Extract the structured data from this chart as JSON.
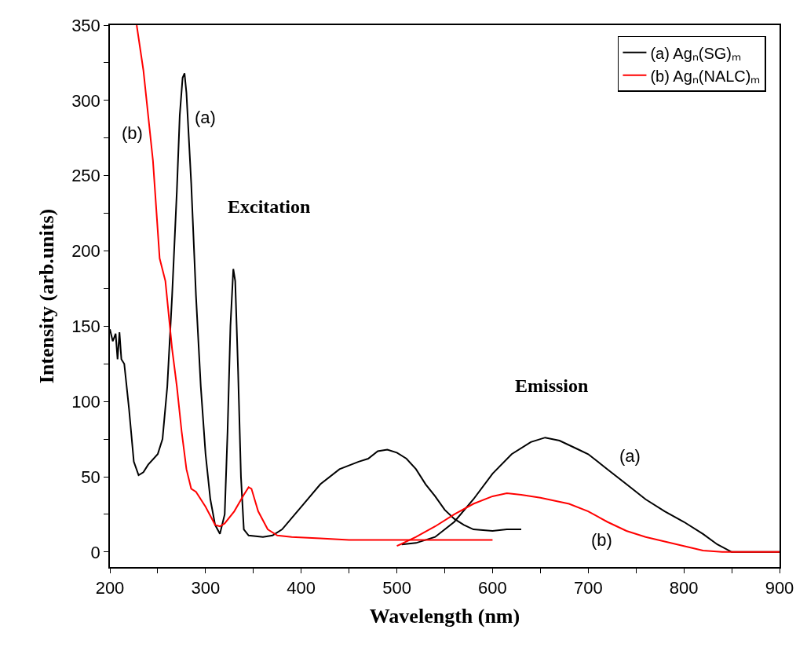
{
  "chart_data": {
    "type": "line",
    "xlabel": "Wavelength (nm)",
    "ylabel": "Intensity (arb.units)",
    "xlim": [
      200,
      900
    ],
    "xticks": [
      200,
      {
        "value": 250,
        "label": null
      },
      300,
      {
        "value": 350,
        "label": null
      },
      400,
      {
        "value": 450,
        "label": null
      },
      500,
      {
        "value": 550,
        "label": null
      },
      600,
      {
        "value": 650,
        "label": null
      },
      700,
      {
        "value": 750,
        "label": null
      },
      800,
      {
        "value": 850,
        "label": null
      },
      900
    ],
    "ylim": [
      -10,
      350
    ],
    "yticks": [
      0,
      {
        "value": 25,
        "label": null
      },
      50,
      {
        "value": 75,
        "label": null
      },
      100,
      {
        "value": 125,
        "label": null
      },
      150,
      {
        "value": 175,
        "label": null
      },
      200,
      {
        "value": 225,
        "label": null
      },
      250,
      {
        "value": 275,
        "label": null
      },
      300,
      {
        "value": 325,
        "label": null
      },
      350
    ],
    "legend": "top right",
    "line_style": "solid",
    "marker": "none",
    "series": [
      {
        "name": "(a) Agₙ(SG)ₘ",
        "color": "#000000",
        "x": [
          200,
          203,
          206,
          208,
          210,
          212,
          215,
          220,
          225,
          230,
          235,
          240,
          250,
          255,
          260,
          265,
          270,
          273,
          276,
          278,
          280,
          285,
          290,
          295,
          300,
          305,
          310,
          315,
          320,
          323,
          326,
          329,
          331,
          334,
          337,
          340,
          345,
          360,
          370,
          380,
          400,
          420,
          440,
          460,
          470,
          480,
          490,
          500,
          510,
          520,
          530,
          540,
          550,
          560,
          570,
          580,
          600,
          615,
          630
        ],
        "values": [
          148,
          140,
          145,
          128,
          146,
          128,
          125,
          95,
          60,
          51,
          53,
          58,
          65,
          75,
          110,
          170,
          240,
          290,
          315,
          318,
          305,
          245,
          170,
          110,
          65,
          35,
          18,
          12,
          25,
          80,
          150,
          188,
          180,
          120,
          50,
          15,
          11,
          10,
          11,
          15,
          30,
          45,
          55,
          60,
          62,
          67,
          68,
          66,
          62,
          55,
          45,
          37,
          28,
          22,
          18,
          15,
          14,
          15,
          15
        ]
      },
      {
        "color": "#000000",
        "x": [
          505,
          520,
          540,
          560,
          580,
          600,
          620,
          640,
          655,
          670,
          690,
          700,
          720,
          740,
          760,
          780,
          800,
          820,
          835,
          850,
          870,
          900
        ],
        "values": [
          5,
          6,
          10,
          20,
          35,
          52,
          65,
          73,
          76,
          74,
          68,
          65,
          55,
          45,
          35,
          27,
          20,
          12,
          5,
          0,
          0,
          0
        ]
      },
      {
        "name": "(b) Agₙ(NALC)ₘ",
        "color": "#ff0000",
        "x": [
          228,
          235,
          245,
          252,
          258,
          265,
          270,
          275,
          280,
          285,
          290,
          295,
          300,
          305,
          310,
          315,
          320,
          330,
          340,
          345,
          348,
          355,
          365,
          375,
          390,
          420,
          450,
          480,
          510,
          540,
          570,
          600
        ],
        "values": [
          350,
          320,
          260,
          195,
          180,
          135,
          110,
          80,
          55,
          42,
          40,
          35,
          30,
          24,
          18,
          17,
          19,
          27,
          38,
          43,
          42,
          27,
          15,
          11,
          10,
          9,
          8,
          8,
          8,
          8,
          8,
          8
        ]
      },
      {
        "color": "#ff0000",
        "x": [
          500,
          520,
          540,
          560,
          580,
          600,
          615,
          630,
          650,
          680,
          700,
          720,
          740,
          760,
          780,
          800,
          820,
          840,
          900
        ],
        "values": [
          4,
          10,
          17,
          25,
          32,
          37,
          39,
          38,
          36,
          32,
          27,
          20,
          14,
          10,
          7,
          4,
          1,
          0,
          0
        ]
      }
    ],
    "annotations": [
      "(a)",
      "(b)",
      "Excitation",
      "Emission",
      "(a)",
      "(b)"
    ]
  }
}
